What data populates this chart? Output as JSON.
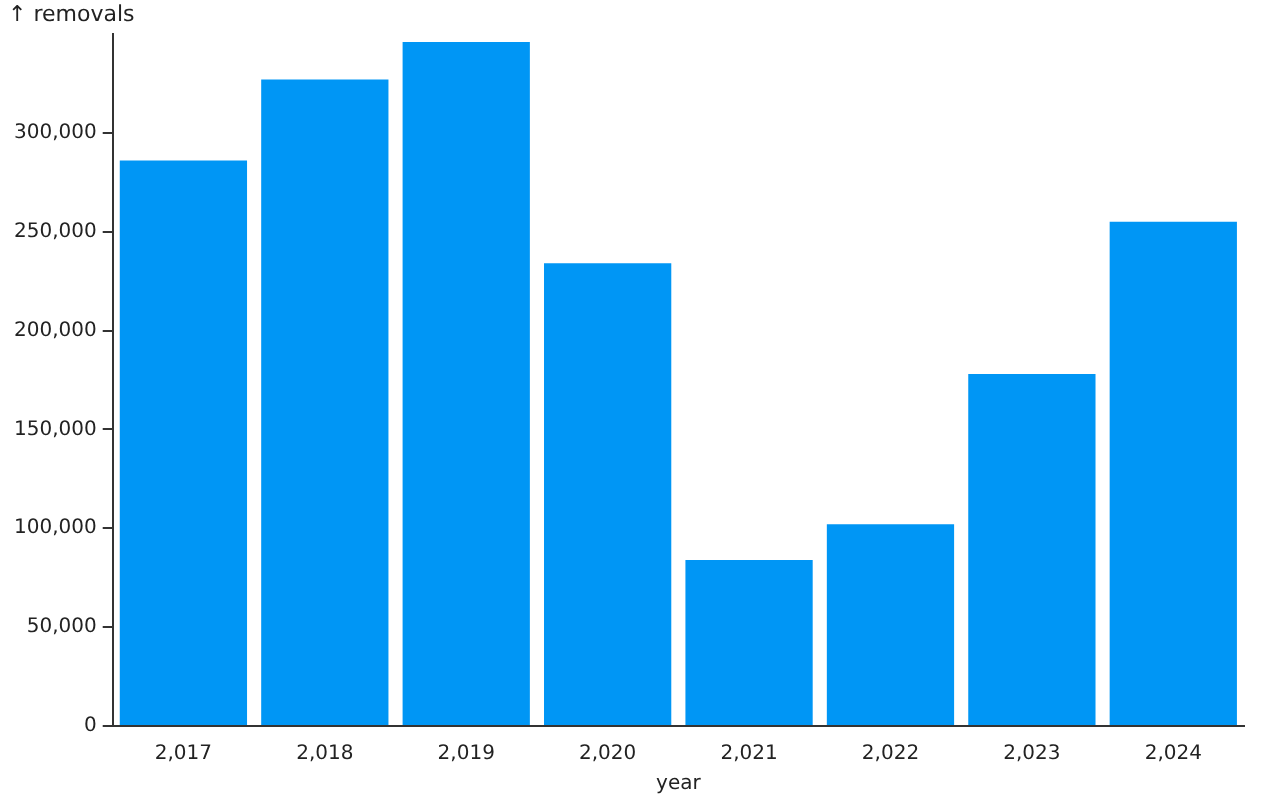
{
  "chart_data": {
    "type": "bar",
    "xlabel": "year",
    "ylabel": "↑ removals",
    "categories": [
      "2,017",
      "2,018",
      "2,019",
      "2,020",
      "2,021",
      "2,022",
      "2,023",
      "2,024"
    ],
    "values": [
      286000,
      327000,
      346000,
      234000,
      84000,
      102000,
      178000,
      255000
    ],
    "color": "#0096f5",
    "ylim": [
      0,
      350000
    ],
    "yticks": [
      0,
      {
        "value": 50000,
        "label": "50,000"
      },
      {
        "value": 100000,
        "label": "100,000"
      },
      {
        "value": 150000,
        "label": "150,000"
      },
      {
        "value": 200000,
        "label": "200,000"
      },
      {
        "value": 250000,
        "label": "250,000"
      },
      {
        "value": 300000,
        "label": "300,000"
      }
    ],
    "grid": false,
    "legend": false
  }
}
